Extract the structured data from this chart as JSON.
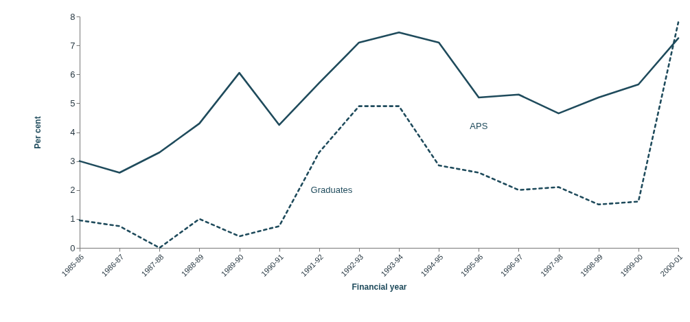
{
  "chart_data": {
    "type": "line",
    "xlabel": "Financial year",
    "ylabel": "Per cent",
    "categories": [
      "1985-86",
      "1986-87",
      "1987-88",
      "1988-89",
      "1989-90",
      "1990-91",
      "1991-92",
      "1992-93",
      "1993-94",
      "1994-95",
      "1995-96",
      "1996-97",
      "1997-98",
      "1998-99",
      "1999-00",
      "2000-01"
    ],
    "series": [
      {
        "name": "APS",
        "color": "#1f4b5c",
        "line_style": "solid",
        "values": [
          3.0,
          2.6,
          3.3,
          4.3,
          6.05,
          4.25,
          5.7,
          7.1,
          7.45,
          7.1,
          5.2,
          5.3,
          4.65,
          5.2,
          5.65,
          7.25
        ]
      },
      {
        "name": "Graduates",
        "color": "#1f4b5c",
        "line_style": "dotted",
        "values": [
          0.95,
          0.75,
          0.0,
          1.0,
          0.4,
          0.75,
          3.3,
          4.9,
          4.9,
          2.85,
          2.6,
          2.0,
          2.1,
          1.5,
          1.6,
          7.8
        ]
      }
    ],
    "ylim": [
      0,
      8
    ],
    "yticks": [
      0,
      1,
      2,
      3,
      4,
      5,
      6,
      7,
      8
    ],
    "grid": false
  }
}
